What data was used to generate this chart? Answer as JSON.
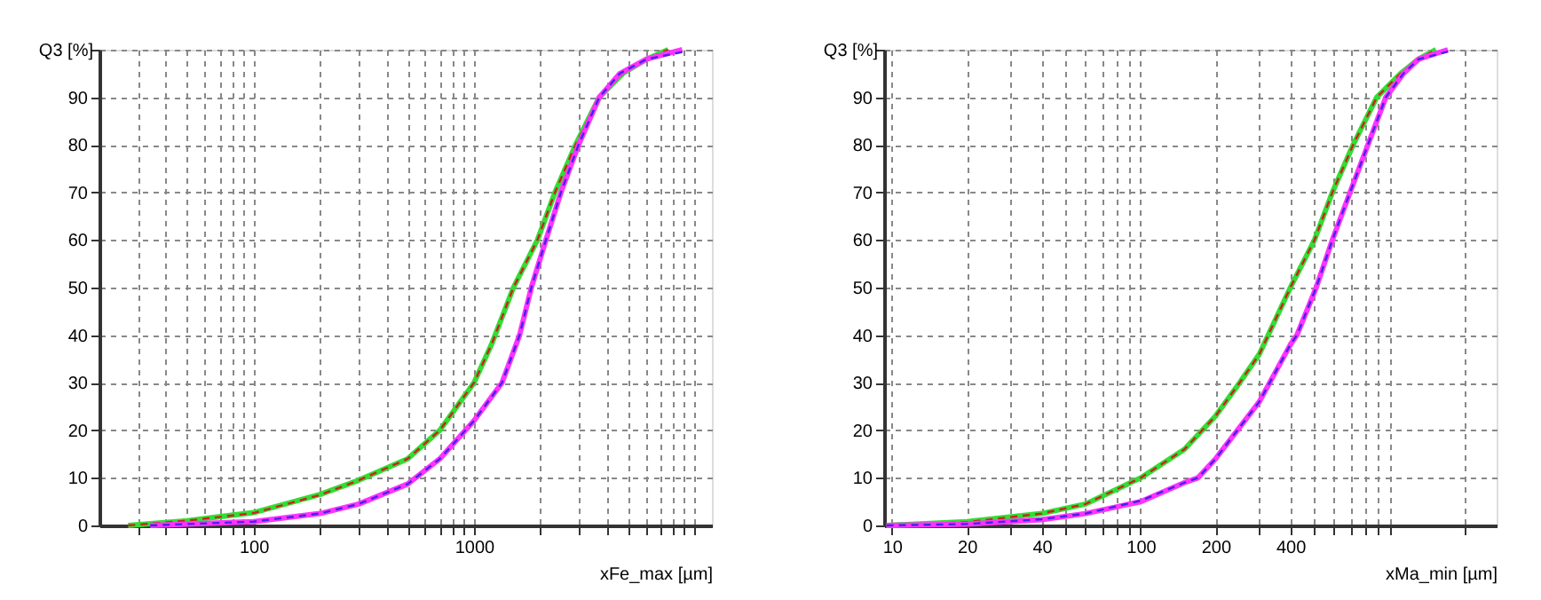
{
  "chart_data": [
    {
      "type": "line",
      "xlabel": "xFe_max [µm]",
      "ylabel": "Q3 [%]",
      "log": "x",
      "grid": true,
      "marker": "none",
      "xlim": [
        20,
        12000
      ],
      "ylim": [
        0,
        100
      ],
      "xticks": [
        {
          "value": 30,
          "label": null
        },
        {
          "value": 40,
          "label": null
        },
        {
          "value": 50,
          "label": null
        },
        {
          "value": 60,
          "label": null
        },
        {
          "value": 70,
          "label": null
        },
        {
          "value": 80,
          "label": null
        },
        {
          "value": 90,
          "label": null
        },
        100,
        {
          "value": 200,
          "label": null
        },
        {
          "value": 300,
          "label": null
        },
        {
          "value": 400,
          "label": null
        },
        {
          "value": 500,
          "label": null
        },
        {
          "value": 600,
          "label": null
        },
        {
          "value": 700,
          "label": null
        },
        {
          "value": 800,
          "label": null
        },
        {
          "value": 900,
          "label": null
        },
        1000,
        {
          "value": 2000,
          "label": null
        },
        {
          "value": 3000,
          "label": null
        },
        {
          "value": 4000,
          "label": null
        },
        {
          "value": 5000,
          "label": null
        },
        {
          "value": 6000,
          "label": null
        },
        {
          "value": 7000,
          "label": null
        },
        {
          "value": 8000,
          "label": null
        },
        {
          "value": 9000,
          "label": null
        },
        {
          "value": 10000,
          "label": null
        }
      ],
      "yticks": [
        0,
        10,
        20,
        30,
        40,
        50,
        60,
        70,
        80,
        90,
        {
          "value": 100,
          "label": null
        }
      ],
      "series": [
        {
          "color": "#33dd33",
          "line_style": "solid",
          "x": [
            27,
            50,
            100,
            200,
            300,
            500,
            700,
            1000,
            1200,
            1510,
            1940,
            2330,
            2890,
            3700,
            4730,
            6060,
            7600
          ],
          "values": [
            0,
            1,
            2.7,
            6.5,
            9.5,
            14,
            20,
            30,
            38,
            50,
            60,
            70,
            80,
            90,
            95,
            98,
            100
          ]
        },
        {
          "color": "#cc2222",
          "line_style": "dashed",
          "x": [
            27,
            50,
            100,
            200,
            300,
            500,
            700,
            1000,
            1200,
            1510,
            1940,
            2330,
            2890,
            3700,
            4730,
            6060,
            7600
          ],
          "values": [
            0,
            1,
            2.6,
            6.4,
            9.5,
            14,
            20,
            30,
            38,
            50,
            60,
            70,
            80,
            90,
            95,
            98,
            100
          ]
        },
        {
          "color": "#ff33ff",
          "line_style": "solid",
          "x": [
            34,
            50,
            100,
            200,
            300,
            500,
            700,
            1000,
            1340,
            1610,
            1820,
            2120,
            2480,
            2980,
            3700,
            4590,
            6060,
            8800
          ],
          "values": [
            0,
            0.3,
            0.8,
            2.5,
            4.5,
            8.7,
            14,
            22,
            30,
            40,
            50,
            60,
            70,
            80,
            90,
            95,
            98,
            100
          ]
        },
        {
          "color": "#4422ee",
          "line_style": "dashed",
          "x": [
            34,
            50,
            100,
            200,
            300,
            500,
            700,
            1000,
            1340,
            1610,
            1820,
            2120,
            2480,
            2980,
            3700,
            4590,
            6060,
            8800
          ],
          "values": [
            0,
            0.3,
            0.8,
            2.5,
            4.5,
            8.7,
            14,
            22,
            30,
            40,
            50,
            60,
            70,
            80,
            90,
            95,
            98,
            99.5
          ]
        }
      ]
    },
    {
      "type": "line",
      "xlabel": "xMa_min [µm]",
      "ylabel": "Q3 [%]",
      "log": "x",
      "grid": true,
      "marker": "none",
      "xlim": [
        9.3,
        2700
      ],
      "ylim": [
        0,
        100
      ],
      "xticks": [
        10,
        20,
        {
          "value": 30,
          "label": null
        },
        40,
        {
          "value": 50,
          "label": null
        },
        {
          "value": 60,
          "label": null
        },
        {
          "value": 70,
          "label": null
        },
        {
          "value": 80,
          "label": null
        },
        {
          "value": 90,
          "label": null
        },
        100,
        200,
        {
          "value": 300,
          "label": null
        },
        400,
        {
          "value": 500,
          "label": null
        },
        {
          "value": 600,
          "label": null
        },
        {
          "value": 700,
          "label": null
        },
        {
          "value": 800,
          "label": null
        },
        {
          "value": 900,
          "label": null
        },
        {
          "value": 1000,
          "label": null
        },
        {
          "value": 2000,
          "label": null
        }
      ],
      "yticks": [
        0,
        10,
        20,
        30,
        40,
        50,
        60,
        70,
        80,
        90,
        {
          "value": 100,
          "label": null
        }
      ],
      "series": [
        {
          "color": "#33dd33",
          "line_style": "solid",
          "x": [
            9.5,
            20,
            40,
            60,
            100,
            150,
            200,
            250,
            300,
            400,
            500,
            590,
            715,
            890,
            1110,
            1310,
            1540
          ],
          "values": [
            0,
            0.8,
            2.5,
            4.5,
            10,
            16,
            23,
            30,
            36,
            50,
            60,
            70,
            80,
            90,
            95,
            98,
            100
          ]
        },
        {
          "color": "#cc2222",
          "line_style": "dashed",
          "x": [
            9.5,
            20,
            40,
            60,
            100,
            150,
            200,
            250,
            300,
            400,
            500,
            590,
            715,
            890,
            1110,
            1310,
            1540
          ],
          "values": [
            0,
            0.7,
            2.5,
            4.5,
            10,
            16,
            23,
            30,
            36,
            50,
            60,
            70,
            80,
            90,
            95,
            98,
            100
          ]
        },
        {
          "color": "#ff33ff",
          "line_style": "solid",
          "x": [
            9.5,
            20,
            40,
            60,
            100,
            150,
            170,
            200,
            300,
            400,
            425,
            508,
            590,
            695,
            820,
            968,
            1140,
            1310,
            1720
          ],
          "values": [
            0,
            0.3,
            1.2,
            2.5,
            5,
            9,
            10,
            14,
            26,
            38,
            40,
            50,
            60,
            70,
            80,
            90,
            95,
            98,
            100
          ]
        },
        {
          "color": "#4422ee",
          "line_style": "dashed",
          "x": [
            9.5,
            20,
            40,
            60,
            100,
            150,
            170,
            200,
            300,
            400,
            425,
            508,
            590,
            695,
            820,
            968,
            1140,
            1310,
            1720
          ],
          "values": [
            0,
            0.3,
            1.3,
            2.5,
            5.2,
            9,
            10,
            14,
            26,
            38,
            40,
            50,
            60,
            70,
            80,
            90,
            95,
            98,
            99.6
          ]
        }
      ]
    }
  ]
}
